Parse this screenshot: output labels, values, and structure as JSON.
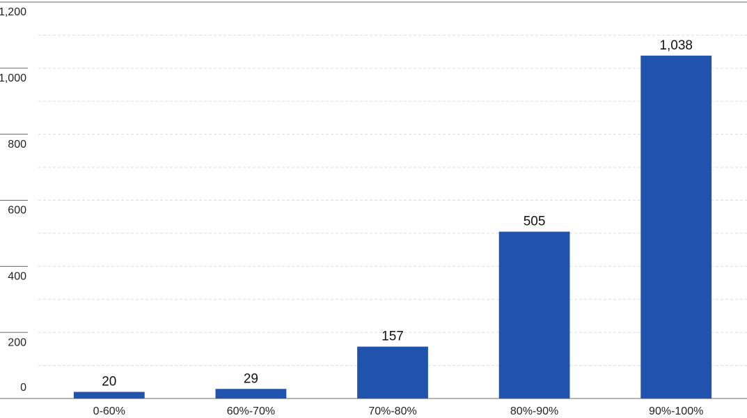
{
  "chart_data": {
    "type": "bar",
    "categories": [
      "0-60%",
      "60%-70%",
      "70%-80%",
      "80%-90%",
      "90%-100%"
    ],
    "values": [
      20,
      29,
      157,
      505,
      1038
    ],
    "value_labels": [
      "20",
      "29",
      "157",
      "505",
      "1,038"
    ],
    "color": "#2053ae",
    "ylim": [
      0,
      1200
    ],
    "yticks": [
      0,
      200,
      400,
      600,
      800,
      {
        "value": 1000,
        "label": "1,000"
      },
      {
        "value": 1200,
        "label": "1,200"
      }
    ],
    "grid": true
  }
}
